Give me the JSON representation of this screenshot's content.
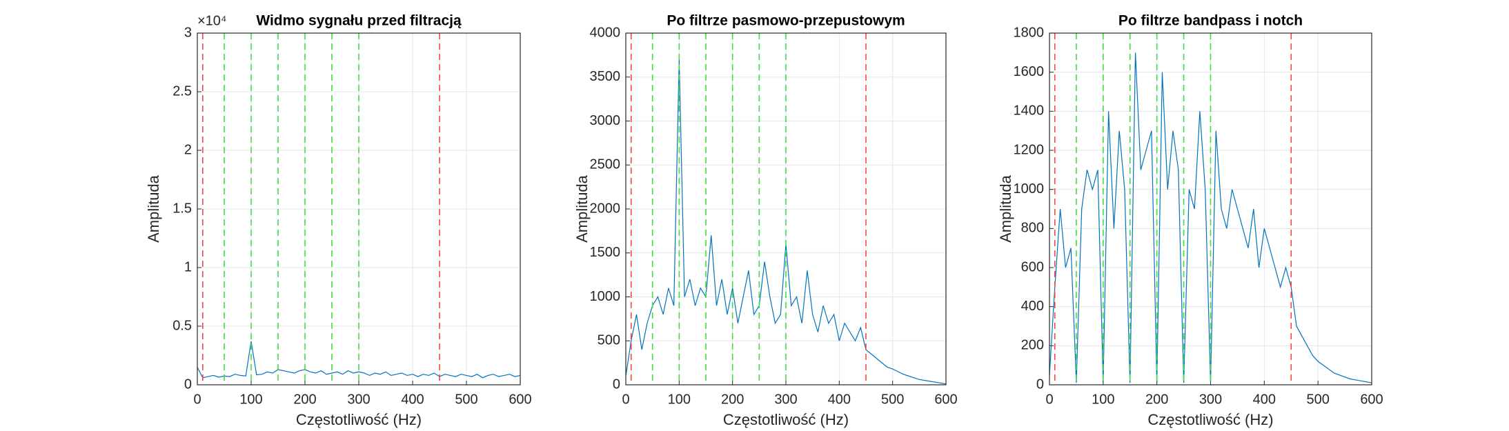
{
  "chart_data": [
    {
      "type": "line",
      "title": "Widmo sygnału przed filtracją",
      "xlabel": "Częstotliwość (Hz)",
      "ylabel": "Amplituda",
      "y_exponent_label": "×10⁴",
      "color": "#0072bd",
      "grid": true,
      "x": [
        0,
        10,
        20,
        30,
        40,
        50,
        60,
        70,
        80,
        90,
        100,
        110,
        120,
        130,
        140,
        150,
        160,
        170,
        180,
        190,
        200,
        210,
        220,
        230,
        240,
        250,
        260,
        270,
        280,
        290,
        300,
        310,
        320,
        330,
        340,
        350,
        360,
        370,
        380,
        390,
        400,
        410,
        420,
        430,
        440,
        450,
        460,
        470,
        480,
        490,
        500,
        510,
        520,
        530,
        540,
        550,
        560,
        570,
        580,
        590,
        600
      ],
      "values": [
        1500,
        600,
        700,
        800,
        650,
        750,
        700,
        900,
        800,
        750,
        3700,
        850,
        900,
        1100,
        1000,
        1300,
        1200,
        1100,
        1000,
        1200,
        1300,
        1100,
        1000,
        1200,
        900,
        1000,
        1100,
        900,
        1200,
        1000,
        1100,
        1000,
        800,
        1000,
        900,
        1100,
        800,
        900,
        1000,
        800,
        900,
        700,
        900,
        800,
        1000,
        700,
        900,
        800,
        700,
        900,
        800,
        700,
        900,
        600,
        800,
        900,
        700,
        800,
        900,
        700,
        800
      ],
      "xlim": [
        0,
        600
      ],
      "xticks": [
        0,
        100,
        200,
        300,
        400,
        500,
        600
      ],
      "ylim": [
        0,
        30000
      ],
      "yticks": [
        0,
        {
          "value": 5000,
          "label": "0.5"
        },
        {
          "value": 10000,
          "label": "1"
        },
        {
          "value": 15000,
          "label": "1.5"
        },
        {
          "value": 20000,
          "label": "2"
        },
        {
          "value": 25000,
          "label": "2.5"
        },
        {
          "value": 30000,
          "label": "3"
        }
      ],
      "vlines": [
        {
          "x": 10,
          "color": "#ff4040"
        },
        {
          "x": 50,
          "color": "#40dd40"
        },
        {
          "x": 100,
          "color": "#40dd40"
        },
        {
          "x": 150,
          "color": "#40dd40"
        },
        {
          "x": 200,
          "color": "#40dd40"
        },
        {
          "x": 250,
          "color": "#40dd40"
        },
        {
          "x": 300,
          "color": "#40dd40"
        },
        {
          "x": 450,
          "color": "#ff4040"
        }
      ]
    },
    {
      "type": "line",
      "title": "Po filtrze pasmowo-przepustowym",
      "xlabel": "Częstotliwość (Hz)",
      "ylabel": "Amplituda",
      "color": "#0072bd",
      "grid": true,
      "x": [
        0,
        10,
        20,
        30,
        40,
        50,
        60,
        70,
        80,
        90,
        100,
        110,
        120,
        130,
        140,
        150,
        160,
        170,
        180,
        190,
        200,
        210,
        220,
        230,
        240,
        250,
        260,
        270,
        280,
        290,
        300,
        310,
        320,
        330,
        340,
        350,
        360,
        370,
        380,
        390,
        400,
        410,
        420,
        430,
        440,
        450,
        460,
        470,
        480,
        490,
        500,
        510,
        520,
        530,
        540,
        550,
        560,
        570,
        580,
        590,
        600
      ],
      "values": [
        100,
        500,
        800,
        400,
        700,
        900,
        1000,
        800,
        1100,
        900,
        3700,
        1000,
        1200,
        900,
        1100,
        1000,
        1700,
        900,
        1200,
        800,
        1100,
        700,
        1000,
        1300,
        800,
        900,
        1400,
        1000,
        700,
        800,
        1600,
        900,
        1000,
        700,
        1300,
        800,
        600,
        900,
        700,
        800,
        500,
        700,
        600,
        500,
        650,
        400,
        350,
        300,
        250,
        200,
        180,
        150,
        120,
        100,
        80,
        60,
        50,
        40,
        30,
        20,
        10
      ],
      "xlim": [
        0,
        600
      ],
      "xticks": [
        0,
        100,
        200,
        300,
        400,
        500,
        600
      ],
      "ylim": [
        0,
        4000
      ],
      "yticks": [
        0,
        500,
        1000,
        1500,
        2000,
        2500,
        3000,
        3500,
        4000
      ],
      "vlines": [
        {
          "x": 10,
          "color": "#ff4040"
        },
        {
          "x": 50,
          "color": "#40dd40"
        },
        {
          "x": 100,
          "color": "#40dd40"
        },
        {
          "x": 150,
          "color": "#40dd40"
        },
        {
          "x": 200,
          "color": "#40dd40"
        },
        {
          "x": 250,
          "color": "#40dd40"
        },
        {
          "x": 300,
          "color": "#40dd40"
        },
        {
          "x": 450,
          "color": "#ff4040"
        }
      ]
    },
    {
      "type": "line",
      "title": "Po filtrze bandpass i notch",
      "xlabel": "Częstotliwość (Hz)",
      "ylabel": "Amplituda",
      "color": "#0072bd",
      "grid": true,
      "x": [
        0,
        10,
        20,
        30,
        40,
        50,
        60,
        70,
        80,
        90,
        100,
        110,
        120,
        130,
        140,
        150,
        160,
        170,
        180,
        190,
        200,
        210,
        220,
        230,
        240,
        250,
        260,
        270,
        280,
        290,
        300,
        310,
        320,
        330,
        340,
        350,
        360,
        370,
        380,
        390,
        400,
        410,
        420,
        430,
        440,
        450,
        460,
        470,
        480,
        490,
        500,
        510,
        520,
        530,
        540,
        550,
        560,
        570,
        580,
        590,
        600
      ],
      "values": [
        50,
        500,
        900,
        600,
        700,
        10,
        900,
        1100,
        1000,
        1100,
        10,
        1400,
        800,
        1300,
        1000,
        10,
        1700,
        1100,
        1200,
        1300,
        10,
        1600,
        1000,
        1300,
        1100,
        10,
        1000,
        900,
        1400,
        1000,
        10,
        1300,
        900,
        800,
        1000,
        900,
        800,
        700,
        900,
        600,
        800,
        700,
        600,
        500,
        600,
        500,
        300,
        250,
        200,
        150,
        120,
        100,
        80,
        60,
        50,
        40,
        30,
        25,
        20,
        15,
        10
      ],
      "xlim": [
        0,
        600
      ],
      "xticks": [
        0,
        100,
        200,
        300,
        400,
        500,
        600
      ],
      "ylim": [
        0,
        1800
      ],
      "yticks": [
        0,
        200,
        400,
        600,
        800,
        1000,
        1200,
        1400,
        1600,
        1800
      ],
      "vlines": [
        {
          "x": 10,
          "color": "#ff4040"
        },
        {
          "x": 50,
          "color": "#40dd40"
        },
        {
          "x": 100,
          "color": "#40dd40"
        },
        {
          "x": 150,
          "color": "#40dd40"
        },
        {
          "x": 200,
          "color": "#40dd40"
        },
        {
          "x": 250,
          "color": "#40dd40"
        },
        {
          "x": 300,
          "color": "#40dd40"
        },
        {
          "x": 450,
          "color": "#ff4040"
        }
      ]
    }
  ]
}
